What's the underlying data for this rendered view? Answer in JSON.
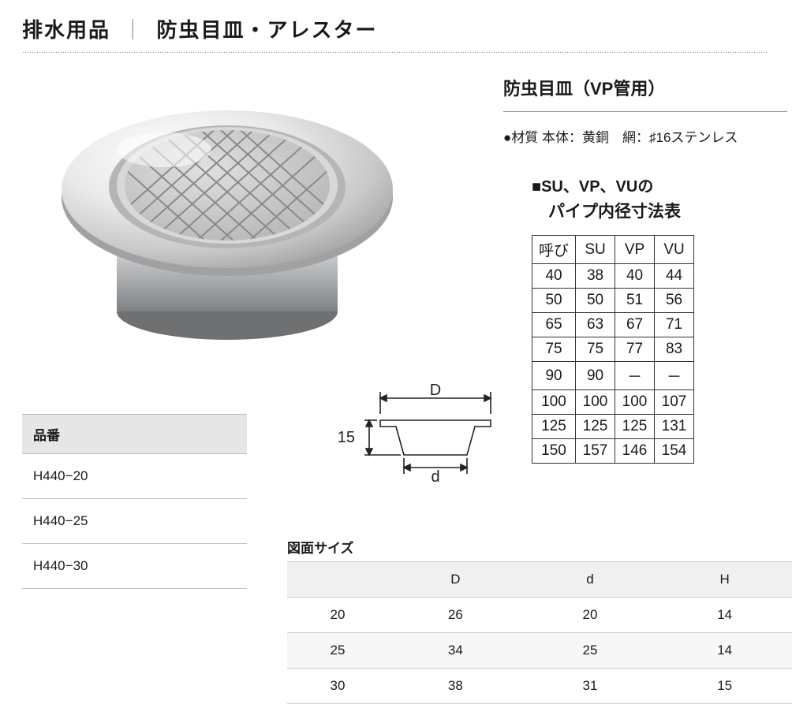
{
  "page": {
    "category": "排水用品",
    "separator": "｜",
    "subcategory": "防虫目皿・アレスター",
    "text_color": "#1a1a1a",
    "bg_color": "#ffffff"
  },
  "product": {
    "name": "防虫目皿（VP管用）",
    "material": "●材質 本体：黄銅　網：♯16ステンレス"
  },
  "pipe_table": {
    "heading_line1": "■SU、VP、VUの",
    "heading_line2": "　パイプ内径寸法表",
    "columns": [
      "呼び",
      "SU",
      "VP",
      "VU"
    ],
    "rows": [
      [
        "40",
        "38",
        "40",
        "44"
      ],
      [
        "50",
        "50",
        "51",
        "56"
      ],
      [
        "65",
        "63",
        "67",
        "71"
      ],
      [
        "75",
        "75",
        "77",
        "83"
      ],
      [
        "90",
        "90",
        "－",
        "－"
      ],
      [
        "100",
        "100",
        "100",
        "107"
      ],
      [
        "125",
        "125",
        "125",
        "131"
      ],
      [
        "150",
        "157",
        "146",
        "154"
      ]
    ],
    "border_color": "#333333"
  },
  "hinban": {
    "header": "品番",
    "rows": [
      "H440−20",
      "H440−25",
      "H440−30"
    ],
    "header_bg": "#e6e6e6",
    "border_color": "#bbbbbb"
  },
  "diagram": {
    "label_D": "D",
    "label_d": "d",
    "label_h": "15",
    "stroke": "#222222",
    "fill": "#ffffff",
    "text_size": 20
  },
  "zumen": {
    "title": "図面サイズ",
    "columns": [
      "",
      "D",
      "d",
      "H"
    ],
    "rows": [
      [
        "20",
        "26",
        "20",
        "14"
      ],
      [
        "25",
        "34",
        "25",
        "14"
      ],
      [
        "30",
        "38",
        "31",
        "15"
      ]
    ],
    "header_bg": "#f0f0f0",
    "alt_row_bg": "#f7f7f7",
    "border_color": "#cccccc"
  },
  "product_visual": {
    "rim_light": "#f4f4f4",
    "rim_mid": "#dcdcdc",
    "rim_dark": "#b8b8b8",
    "body_light": "#e2e3e4",
    "body_dark": "#8a8c8e",
    "mesh_stroke": "#9a9a9a",
    "mesh_bg": "#cfcfcf"
  }
}
